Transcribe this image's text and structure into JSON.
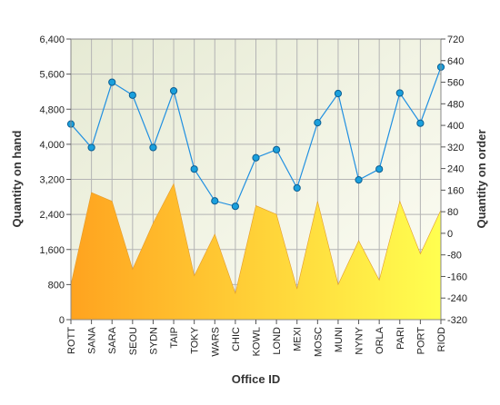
{
  "chart_data": {
    "type": "area+line",
    "categories": [
      "ROTT",
      "SANA",
      "SARA",
      "SEOU",
      "SYDN",
      "TAIP",
      "TOKY",
      "WARS",
      "CHIC",
      "KOWL",
      "LOND",
      "MEXI",
      "MOSC",
      "MUNI",
      "NYNY",
      "ORLA",
      "PARI",
      "PORT",
      "RIOD"
    ],
    "xlabel": "Office ID",
    "ylabel_left": "Quantity on hand",
    "ylabel_right": "Quantity on order",
    "left_axis": {
      "min": 0,
      "max": 6400,
      "ticks": [
        "0",
        "800",
        "1,600",
        "2,400",
        "3,200",
        "4,000",
        "4,800",
        "5,600",
        "6,400"
      ]
    },
    "right_axis": {
      "min": -320,
      "max": 720,
      "ticks": [
        "-320",
        "-240",
        "-160",
        "-80",
        "0",
        "80",
        "160",
        "240",
        "320",
        "400",
        "480",
        "560",
        "640",
        "720"
      ]
    },
    "series": [
      {
        "name": "Quantity on hand",
        "axis": "left",
        "kind": "area",
        "values": [
          800,
          2900,
          2700,
          1150,
          2200,
          3100,
          1000,
          1950,
          600,
          2600,
          2400,
          700,
          2700,
          800,
          1800,
          900,
          2700,
          1500,
          2500
        ]
      },
      {
        "name": "Quantity on order",
        "axis": "right",
        "kind": "line",
        "values": [
          405,
          318,
          560,
          512,
          318,
          528,
          238,
          120,
          100,
          280,
          310,
          168,
          410,
          518,
          198,
          238,
          520,
          408,
          616
        ]
      }
    ],
    "colors": {
      "area_start": "#ffa31f",
      "area_end": "#ffff50",
      "line": "#1f8fe0",
      "marker": "#1aa0dd",
      "grid": "#b4b4b4"
    },
    "grid": true
  }
}
